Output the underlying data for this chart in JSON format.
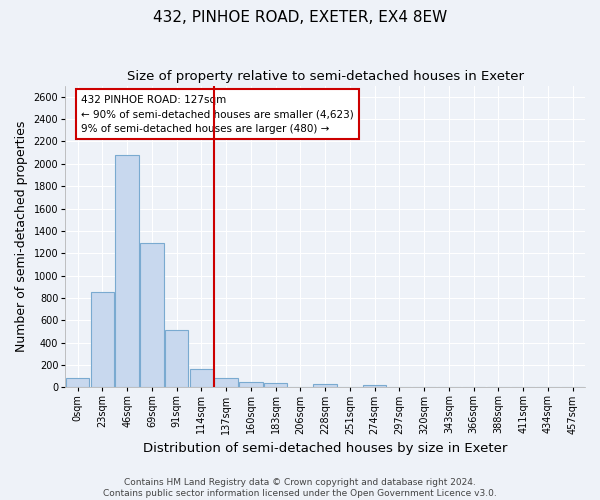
{
  "title": "432, PINHOE ROAD, EXETER, EX4 8EW",
  "subtitle": "Size of property relative to semi-detached houses in Exeter",
  "xlabel": "Distribution of semi-detached houses by size in Exeter",
  "ylabel": "Number of semi-detached properties",
  "categories": [
    "0sqm",
    "23sqm",
    "46sqm",
    "69sqm",
    "91sqm",
    "114sqm",
    "137sqm",
    "160sqm",
    "183sqm",
    "206sqm",
    "228sqm",
    "251sqm",
    "274sqm",
    "297sqm",
    "320sqm",
    "343sqm",
    "366sqm",
    "388sqm",
    "411sqm",
    "434sqm",
    "457sqm"
  ],
  "values": [
    80,
    855,
    2080,
    1290,
    515,
    160,
    80,
    50,
    35,
    0,
    30,
    0,
    25,
    0,
    0,
    0,
    0,
    0,
    0,
    0,
    0
  ],
  "bar_color": "#c8d8ee",
  "bar_edge_color": "#7aaad0",
  "vline_x": 5.5,
  "annotation_title": "432 PINHOE ROAD: 127sqm",
  "annotation_line1": "← 90% of semi-detached houses are smaller (4,623)",
  "annotation_line2": "9% of semi-detached houses are larger (480) →",
  "annotation_color": "#cc0000",
  "ylim": [
    0,
    2700
  ],
  "yticks": [
    0,
    200,
    400,
    600,
    800,
    1000,
    1200,
    1400,
    1600,
    1800,
    2000,
    2200,
    2400,
    2600
  ],
  "footer1": "Contains HM Land Registry data © Crown copyright and database right 2024.",
  "footer2": "Contains public sector information licensed under the Open Government Licence v3.0.",
  "bg_color": "#eef2f8",
  "grid_color": "#ffffff",
  "title_fontsize": 11,
  "subtitle_fontsize": 9.5,
  "axis_label_fontsize": 9,
  "tick_fontsize": 7,
  "footer_fontsize": 6.5
}
